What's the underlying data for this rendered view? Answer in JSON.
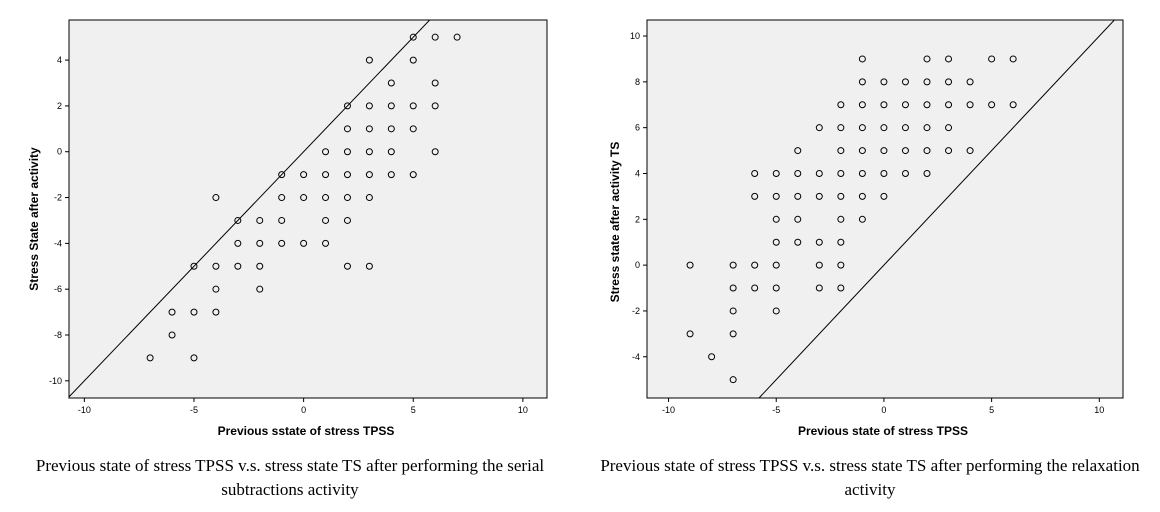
{
  "chart_data": [
    {
      "type": "scatter",
      "xlabel": "Previous sstate of stress TPSS",
      "ylabel": "Stress State after activity",
      "xlim": [
        -10.7,
        11.1
      ],
      "ylim": [
        -10.75,
        5.75
      ],
      "xticks": [
        -10,
        -5,
        0,
        5,
        10
      ],
      "yticks": [
        -10,
        -8,
        -6,
        -4,
        -2,
        0,
        2,
        4
      ],
      "reference_line": "y = x",
      "caption": "Previous state of stress TPSS v.s. stress state TS after performing the serial subtractions activity",
      "points": [
        [
          5,
          5
        ],
        [
          6,
          5
        ],
        [
          7,
          5
        ],
        [
          3,
          4
        ],
        [
          5,
          4
        ],
        [
          4,
          3
        ],
        [
          6,
          3
        ],
        [
          2,
          2
        ],
        [
          3,
          2
        ],
        [
          4,
          2
        ],
        [
          5,
          2
        ],
        [
          6,
          2
        ],
        [
          2,
          1
        ],
        [
          3,
          1
        ],
        [
          4,
          1
        ],
        [
          5,
          1
        ],
        [
          1,
          0
        ],
        [
          2,
          0
        ],
        [
          3,
          0
        ],
        [
          4,
          0
        ],
        [
          6,
          0
        ],
        [
          -1,
          -1
        ],
        [
          0,
          -1
        ],
        [
          1,
          -1
        ],
        [
          2,
          -1
        ],
        [
          3,
          -1
        ],
        [
          4,
          -1
        ],
        [
          5,
          -1
        ],
        [
          -4,
          -2
        ],
        [
          -1,
          -2
        ],
        [
          0,
          -2
        ],
        [
          1,
          -2
        ],
        [
          2,
          -2
        ],
        [
          3,
          -2
        ],
        [
          -3,
          -3
        ],
        [
          -2,
          -3
        ],
        [
          -1,
          -3
        ],
        [
          1,
          -3
        ],
        [
          2,
          -3
        ],
        [
          -3,
          -4
        ],
        [
          -2,
          -4
        ],
        [
          -1,
          -4
        ],
        [
          0,
          -4
        ],
        [
          1,
          -4
        ],
        [
          -5,
          -5
        ],
        [
          -4,
          -5
        ],
        [
          -3,
          -5
        ],
        [
          -2,
          -5
        ],
        [
          2,
          -5
        ],
        [
          3,
          -5
        ],
        [
          -4,
          -6
        ],
        [
          -2,
          -6
        ],
        [
          -6,
          -7
        ],
        [
          -5,
          -7
        ],
        [
          -4,
          -7
        ],
        [
          -6,
          -8
        ],
        [
          -7,
          -9
        ],
        [
          -5,
          -9
        ]
      ]
    },
    {
      "type": "scatter",
      "xlabel": "Previous state of stress TPSS",
      "ylabel": "Stress state after activity TS",
      "xlim": [
        -11,
        11.1
      ],
      "ylim": [
        -5.8,
        10.7
      ],
      "xticks": [
        -10,
        -5,
        0,
        5,
        10
      ],
      "yticks": [
        -4,
        -2,
        0,
        2,
        4,
        6,
        8,
        10
      ],
      "reference_line": "y = x",
      "caption": "Previous state of stress TPSS v.s. stress state TS after performing the relaxation activity",
      "points": [
        [
          -1,
          9
        ],
        [
          2,
          9
        ],
        [
          3,
          9
        ],
        [
          5,
          9
        ],
        [
          6,
          9
        ],
        [
          -1,
          8
        ],
        [
          0,
          8
        ],
        [
          1,
          8
        ],
        [
          2,
          8
        ],
        [
          3,
          8
        ],
        [
          4,
          8
        ],
        [
          -2,
          7
        ],
        [
          -1,
          7
        ],
        [
          0,
          7
        ],
        [
          1,
          7
        ],
        [
          2,
          7
        ],
        [
          3,
          7
        ],
        [
          4,
          7
        ],
        [
          5,
          7
        ],
        [
          6,
          7
        ],
        [
          -3,
          6
        ],
        [
          -2,
          6
        ],
        [
          -1,
          6
        ],
        [
          0,
          6
        ],
        [
          1,
          6
        ],
        [
          2,
          6
        ],
        [
          3,
          6
        ],
        [
          -4,
          5
        ],
        [
          -2,
          5
        ],
        [
          -1,
          5
        ],
        [
          0,
          5
        ],
        [
          1,
          5
        ],
        [
          2,
          5
        ],
        [
          3,
          5
        ],
        [
          4,
          5
        ],
        [
          -6,
          4
        ],
        [
          -5,
          4
        ],
        [
          -4,
          4
        ],
        [
          -3,
          4
        ],
        [
          -2,
          4
        ],
        [
          -1,
          4
        ],
        [
          0,
          4
        ],
        [
          1,
          4
        ],
        [
          2,
          4
        ],
        [
          -6,
          3
        ],
        [
          -5,
          3
        ],
        [
          -4,
          3
        ],
        [
          -3,
          3
        ],
        [
          -2,
          3
        ],
        [
          -1,
          3
        ],
        [
          0,
          3
        ],
        [
          -5,
          2
        ],
        [
          -4,
          2
        ],
        [
          -2,
          2
        ],
        [
          -1,
          2
        ],
        [
          -5,
          1
        ],
        [
          -4,
          1
        ],
        [
          -3,
          1
        ],
        [
          -2,
          1
        ],
        [
          -9,
          0
        ],
        [
          -7,
          0
        ],
        [
          -6,
          0
        ],
        [
          -5,
          0
        ],
        [
          -3,
          0
        ],
        [
          -2,
          0
        ],
        [
          -7,
          -1
        ],
        [
          -6,
          -1
        ],
        [
          -5,
          -1
        ],
        [
          -3,
          -1
        ],
        [
          -2,
          -1
        ],
        [
          -7,
          -2
        ],
        [
          -5,
          -2
        ],
        [
          -9,
          -3
        ],
        [
          -7,
          -3
        ],
        [
          -8,
          -4
        ],
        [
          -7,
          -5
        ]
      ]
    }
  ]
}
